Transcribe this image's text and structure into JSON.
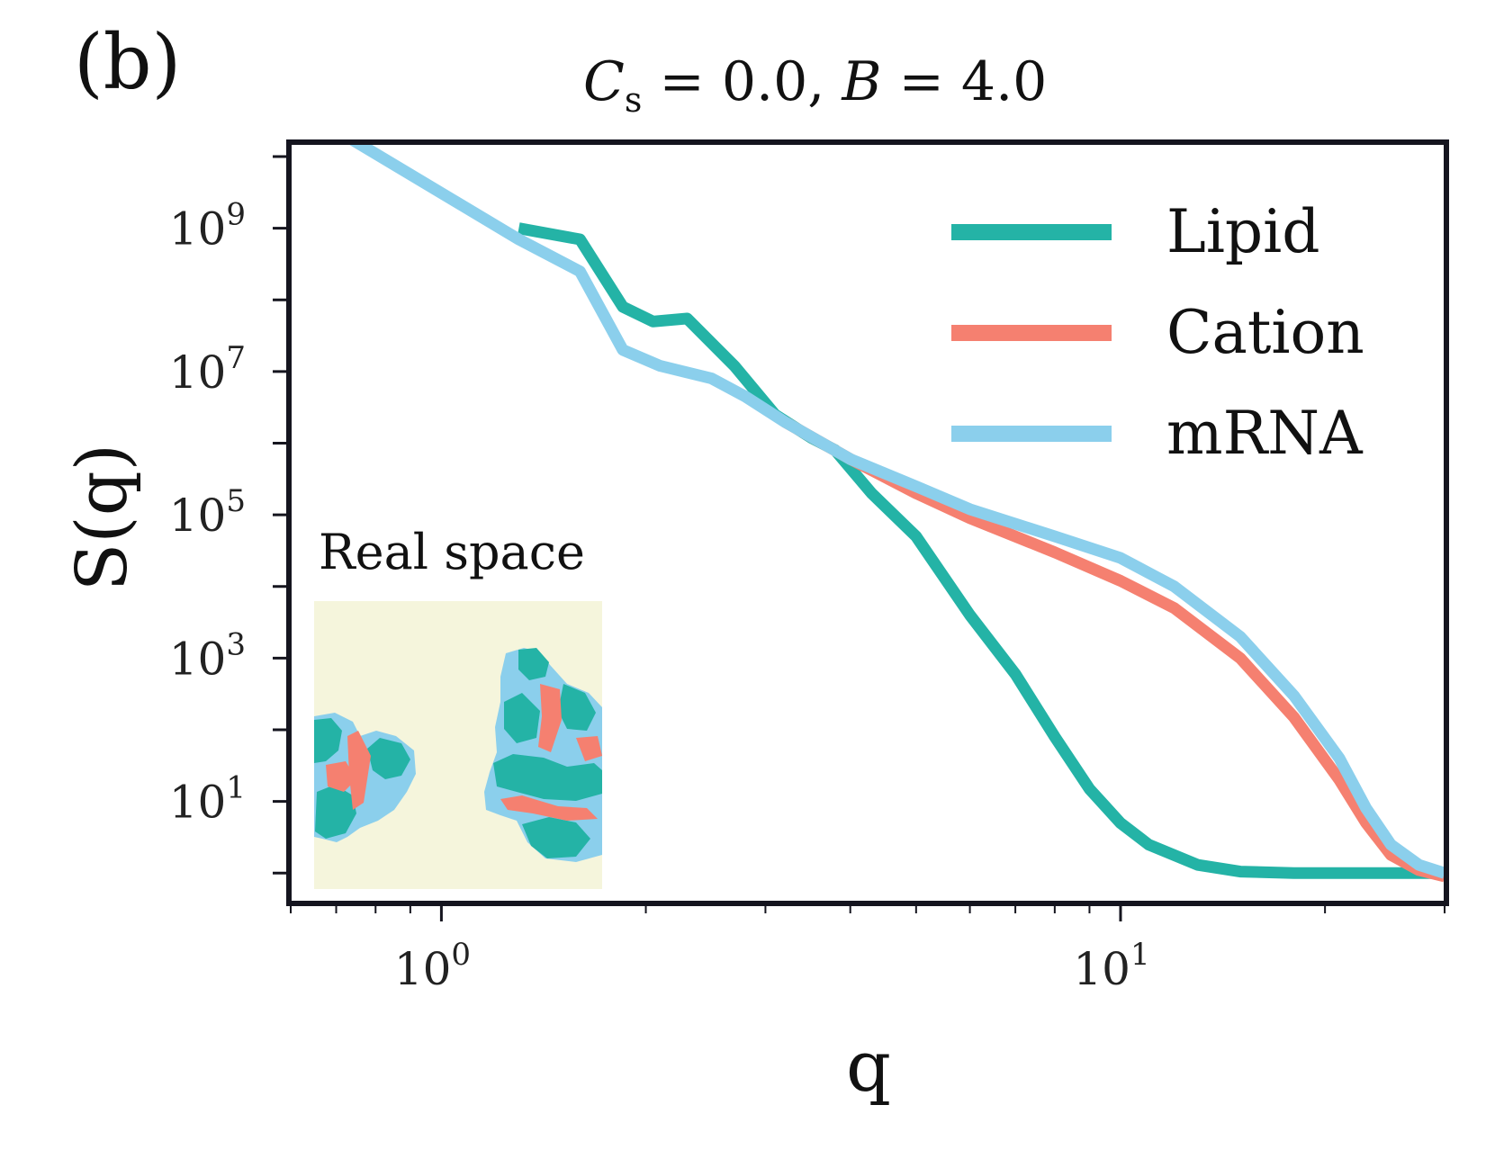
{
  "panel_label": "(b)",
  "chart_data": {
    "type": "line",
    "title": {
      "c_symbol": "C",
      "c_subscript": "s",
      "c_value": " = 0.0, ",
      "b_symbol": "B",
      "b_value": " = 4.0"
    },
    "xlabel": "q",
    "ylabel": "S(q)",
    "xscale": "log",
    "yscale": "log",
    "xlim": [
      0.6,
      30
    ],
    "ylim": [
      0.4,
      15000000000.0
    ],
    "x_ticks": [
      {
        "base": "10",
        "exp": "0",
        "value": 1
      },
      {
        "base": "10",
        "exp": "1",
        "value": 10
      }
    ],
    "y_ticks": [
      {
        "base": "10",
        "exp": "1",
        "value": 10
      },
      {
        "base": "10",
        "exp": "3",
        "value": 1000
      },
      {
        "base": "10",
        "exp": "5",
        "value": 100000
      },
      {
        "base": "10",
        "exp": "7",
        "value": 10000000
      },
      {
        "base": "10",
        "exp": "9",
        "value": 1000000000
      }
    ],
    "legend_position": "top-right",
    "series": [
      {
        "name": "Lipid",
        "color": "#24b3a6",
        "points": [
          [
            1.3,
            1000000000.0
          ],
          [
            1.6,
            700000000.0
          ],
          [
            1.85,
            80000000.0
          ],
          [
            2.05,
            50000000.0
          ],
          [
            2.3,
            55000000.0
          ],
          [
            2.7,
            12000000.0
          ],
          [
            3.1,
            2500000.0
          ],
          [
            3.5,
            1200000.0
          ],
          [
            3.8,
            800000.0
          ],
          [
            4.3,
            200000.0
          ],
          [
            5.0,
            50000.0
          ],
          [
            6.0,
            4000.0
          ],
          [
            7.0,
            600
          ],
          [
            8.0,
            80
          ],
          [
            9.0,
            15
          ],
          [
            10.0,
            5
          ],
          [
            11.0,
            2.5
          ],
          [
            13.0,
            1.3
          ],
          [
            15.0,
            1.05
          ],
          [
            18.0,
            1.0
          ],
          [
            22.0,
            1.0
          ],
          [
            30.0,
            1.0
          ]
        ]
      },
      {
        "name": "Cation",
        "color": "#f58070",
        "points": [
          [
            3.2,
            2000000.0
          ],
          [
            4.0,
            600000.0
          ],
          [
            5.0,
            200000.0
          ],
          [
            6.0,
            90000.0
          ],
          [
            8.0,
            30000.0
          ],
          [
            10.0,
            12000.0
          ],
          [
            12.0,
            5000.0
          ],
          [
            15.0,
            1000.0
          ],
          [
            18.0,
            150
          ],
          [
            21.0,
            20
          ],
          [
            23.0,
            5
          ],
          [
            25.0,
            1.8
          ],
          [
            27.5,
            1.1
          ],
          [
            30.0,
            0.9
          ]
        ]
      },
      {
        "name": "mRNA",
        "color": "#8bcfec",
        "points": [
          [
            0.72,
            20000000000.0
          ],
          [
            1.3,
            700000000.0
          ],
          [
            1.6,
            250000000.0
          ],
          [
            1.85,
            20000000.0
          ],
          [
            2.1,
            12000000.0
          ],
          [
            2.5,
            8000000.0
          ],
          [
            2.8,
            4500000.0
          ],
          [
            3.2,
            2000000.0
          ],
          [
            4.0,
            600000.0
          ],
          [
            5.0,
            250000.0
          ],
          [
            6.0,
            120000.0
          ],
          [
            8.0,
            50000.0
          ],
          [
            10.0,
            25000.0
          ],
          [
            12.0,
            10000.0
          ],
          [
            15.0,
            2000.0
          ],
          [
            18.0,
            300
          ],
          [
            21.0,
            40
          ],
          [
            23.0,
            8
          ],
          [
            25.0,
            2.5
          ],
          [
            27.5,
            1.3
          ],
          [
            30.0,
            1.0
          ]
        ]
      }
    ]
  },
  "inset": {
    "label": "Real space",
    "colors": {
      "background": "#f5f5dc",
      "lipid": "#24b3a6",
      "cation": "#f58070",
      "mrna": "#8bcfec"
    }
  }
}
